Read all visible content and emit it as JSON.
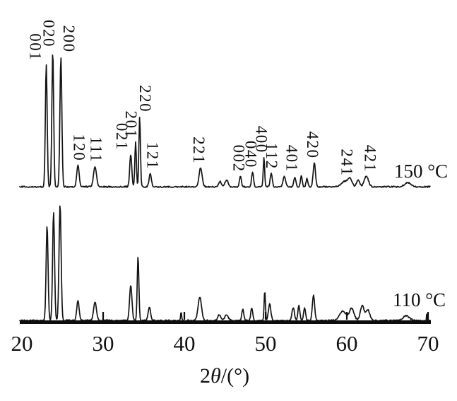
{
  "chart_data": {
    "type": "line",
    "subtype": "xrd-pattern",
    "title": "",
    "xlabel": "2θ/(°)",
    "xlabel_parts": {
      "prefix": "2",
      "theta": "θ",
      "suffix": "/(°)"
    },
    "ylabel": "",
    "xlim": [
      20,
      70
    ],
    "grid": "off",
    "legend_position": "inline-right",
    "x_ticks": [
      "20",
      "30",
      "40",
      "50",
      "60",
      "70"
    ],
    "x_tick_values": [
      20,
      30,
      40,
      50,
      60,
      70
    ],
    "peak_fields": "two_theta_deg, relative_intensity, fwhm_deg, hkl_label",
    "series": [
      {
        "name": "150 °C",
        "peaks": [
          [
            23.0,
            0.9,
            0.26,
            "001"
          ],
          [
            23.8,
            1.0,
            0.26,
            "020"
          ],
          [
            24.8,
            0.96,
            0.28,
            "200"
          ],
          [
            26.9,
            0.16,
            0.35,
            "120"
          ],
          [
            29.0,
            0.15,
            0.42,
            "111"
          ],
          [
            33.4,
            0.24,
            0.3,
            "021"
          ],
          [
            34.0,
            0.33,
            0.22,
            "201"
          ],
          [
            34.5,
            0.52,
            0.22,
            "220"
          ],
          [
            35.8,
            0.1,
            0.32,
            "121"
          ],
          [
            42.0,
            0.14,
            0.45,
            "221"
          ],
          [
            44.4,
            0.04,
            0.4,
            ""
          ],
          [
            45.2,
            0.05,
            0.45,
            ""
          ],
          [
            46.9,
            0.08,
            0.28,
            "002"
          ],
          [
            48.4,
            0.11,
            0.28,
            "040"
          ],
          [
            49.8,
            0.22,
            0.2,
            "400"
          ],
          [
            50.7,
            0.1,
            0.3,
            "112"
          ],
          [
            52.3,
            0.08,
            0.35,
            "401"
          ],
          [
            53.6,
            0.07,
            0.3,
            ""
          ],
          [
            54.4,
            0.08,
            0.26,
            ""
          ],
          [
            55.1,
            0.06,
            0.26,
            ""
          ],
          [
            56.0,
            0.18,
            0.33,
            "420"
          ],
          [
            59.8,
            0.04,
            1.1,
            ""
          ],
          [
            60.4,
            0.05,
            0.55,
            "241"
          ],
          [
            61.4,
            0.05,
            0.45,
            ""
          ],
          [
            62.4,
            0.08,
            0.6,
            "421"
          ],
          [
            67.5,
            0.03,
            0.9,
            ""
          ]
        ]
      },
      {
        "name": "110 °C",
        "peaks": [
          [
            23.1,
            0.82,
            0.28,
            ""
          ],
          [
            23.9,
            0.93,
            0.28,
            ""
          ],
          [
            24.7,
            1.0,
            0.3,
            ""
          ],
          [
            26.9,
            0.17,
            0.35,
            ""
          ],
          [
            29.0,
            0.16,
            0.42,
            ""
          ],
          [
            33.4,
            0.3,
            0.35,
            ""
          ],
          [
            34.3,
            0.55,
            0.24,
            ""
          ],
          [
            35.7,
            0.12,
            0.33,
            ""
          ],
          [
            39.6,
            0.08,
            0.14,
            ""
          ],
          [
            41.9,
            0.2,
            0.5,
            ""
          ],
          [
            44.3,
            0.05,
            0.45,
            ""
          ],
          [
            45.2,
            0.05,
            0.5,
            ""
          ],
          [
            47.2,
            0.1,
            0.28,
            ""
          ],
          [
            48.3,
            0.11,
            0.28,
            ""
          ],
          [
            49.9,
            0.26,
            0.18,
            ""
          ],
          [
            50.5,
            0.14,
            0.35,
            ""
          ],
          [
            53.4,
            0.11,
            0.35,
            ""
          ],
          [
            54.1,
            0.13,
            0.28,
            ""
          ],
          [
            54.8,
            0.11,
            0.28,
            ""
          ],
          [
            55.9,
            0.22,
            0.33,
            ""
          ],
          [
            59.5,
            0.08,
            0.95,
            ""
          ],
          [
            60.6,
            0.1,
            0.7,
            ""
          ],
          [
            61.9,
            0.13,
            0.55,
            ""
          ],
          [
            62.6,
            0.09,
            0.55,
            ""
          ],
          [
            67.3,
            0.04,
            0.9,
            ""
          ],
          [
            69.85,
            0.07,
            0.07,
            ""
          ]
        ]
      }
    ]
  },
  "colors": {
    "ink": "#141414",
    "background": "#ffffff"
  }
}
